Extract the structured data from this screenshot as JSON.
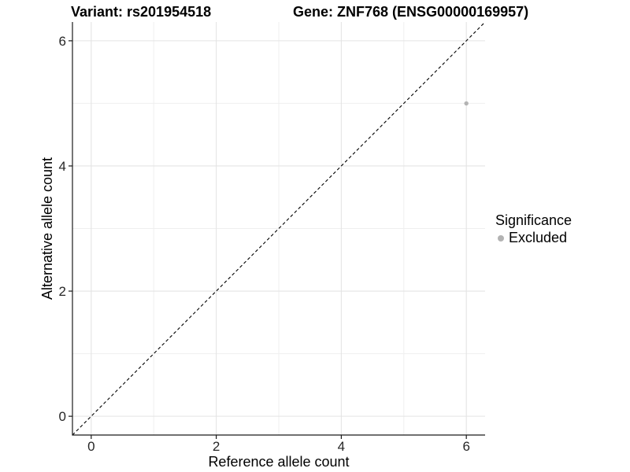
{
  "chart_data": {
    "type": "scatter",
    "titles": {
      "left": "Variant: rs201954518",
      "right": "Gene: ZNF768 (ENSG00000169957)"
    },
    "xlabel": "Reference allele count",
    "ylabel": "Alternative allele count",
    "xlim": [
      -0.3,
      6.3
    ],
    "ylim": [
      -0.3,
      6.3
    ],
    "x_ticks": [
      0,
      2,
      4,
      6
    ],
    "y_ticks": [
      0,
      2,
      4,
      6
    ],
    "x_minor_ticks": [
      1,
      3,
      5
    ],
    "y_minor_ticks": [
      1,
      3,
      5
    ],
    "grid": "major+minor",
    "identity_line": {
      "style": "dashed",
      "color": "#000000",
      "from": [
        -0.3,
        -0.3
      ],
      "to": [
        6.3,
        6.3
      ]
    },
    "series": [
      {
        "name": "Excluded",
        "color": "#b3b3b3",
        "points": [
          {
            "x": 6,
            "y": 5
          }
        ]
      }
    ],
    "legend": {
      "title": "Significance",
      "position": "right",
      "items": [
        {
          "label": "Excluded",
          "color": "#b3b3b3"
        }
      ]
    },
    "colors": {
      "grid_major": "#e4e4e4",
      "grid_minor": "#efefef",
      "axis_line": "#1a1a1a",
      "tick_text": "#262626"
    }
  }
}
